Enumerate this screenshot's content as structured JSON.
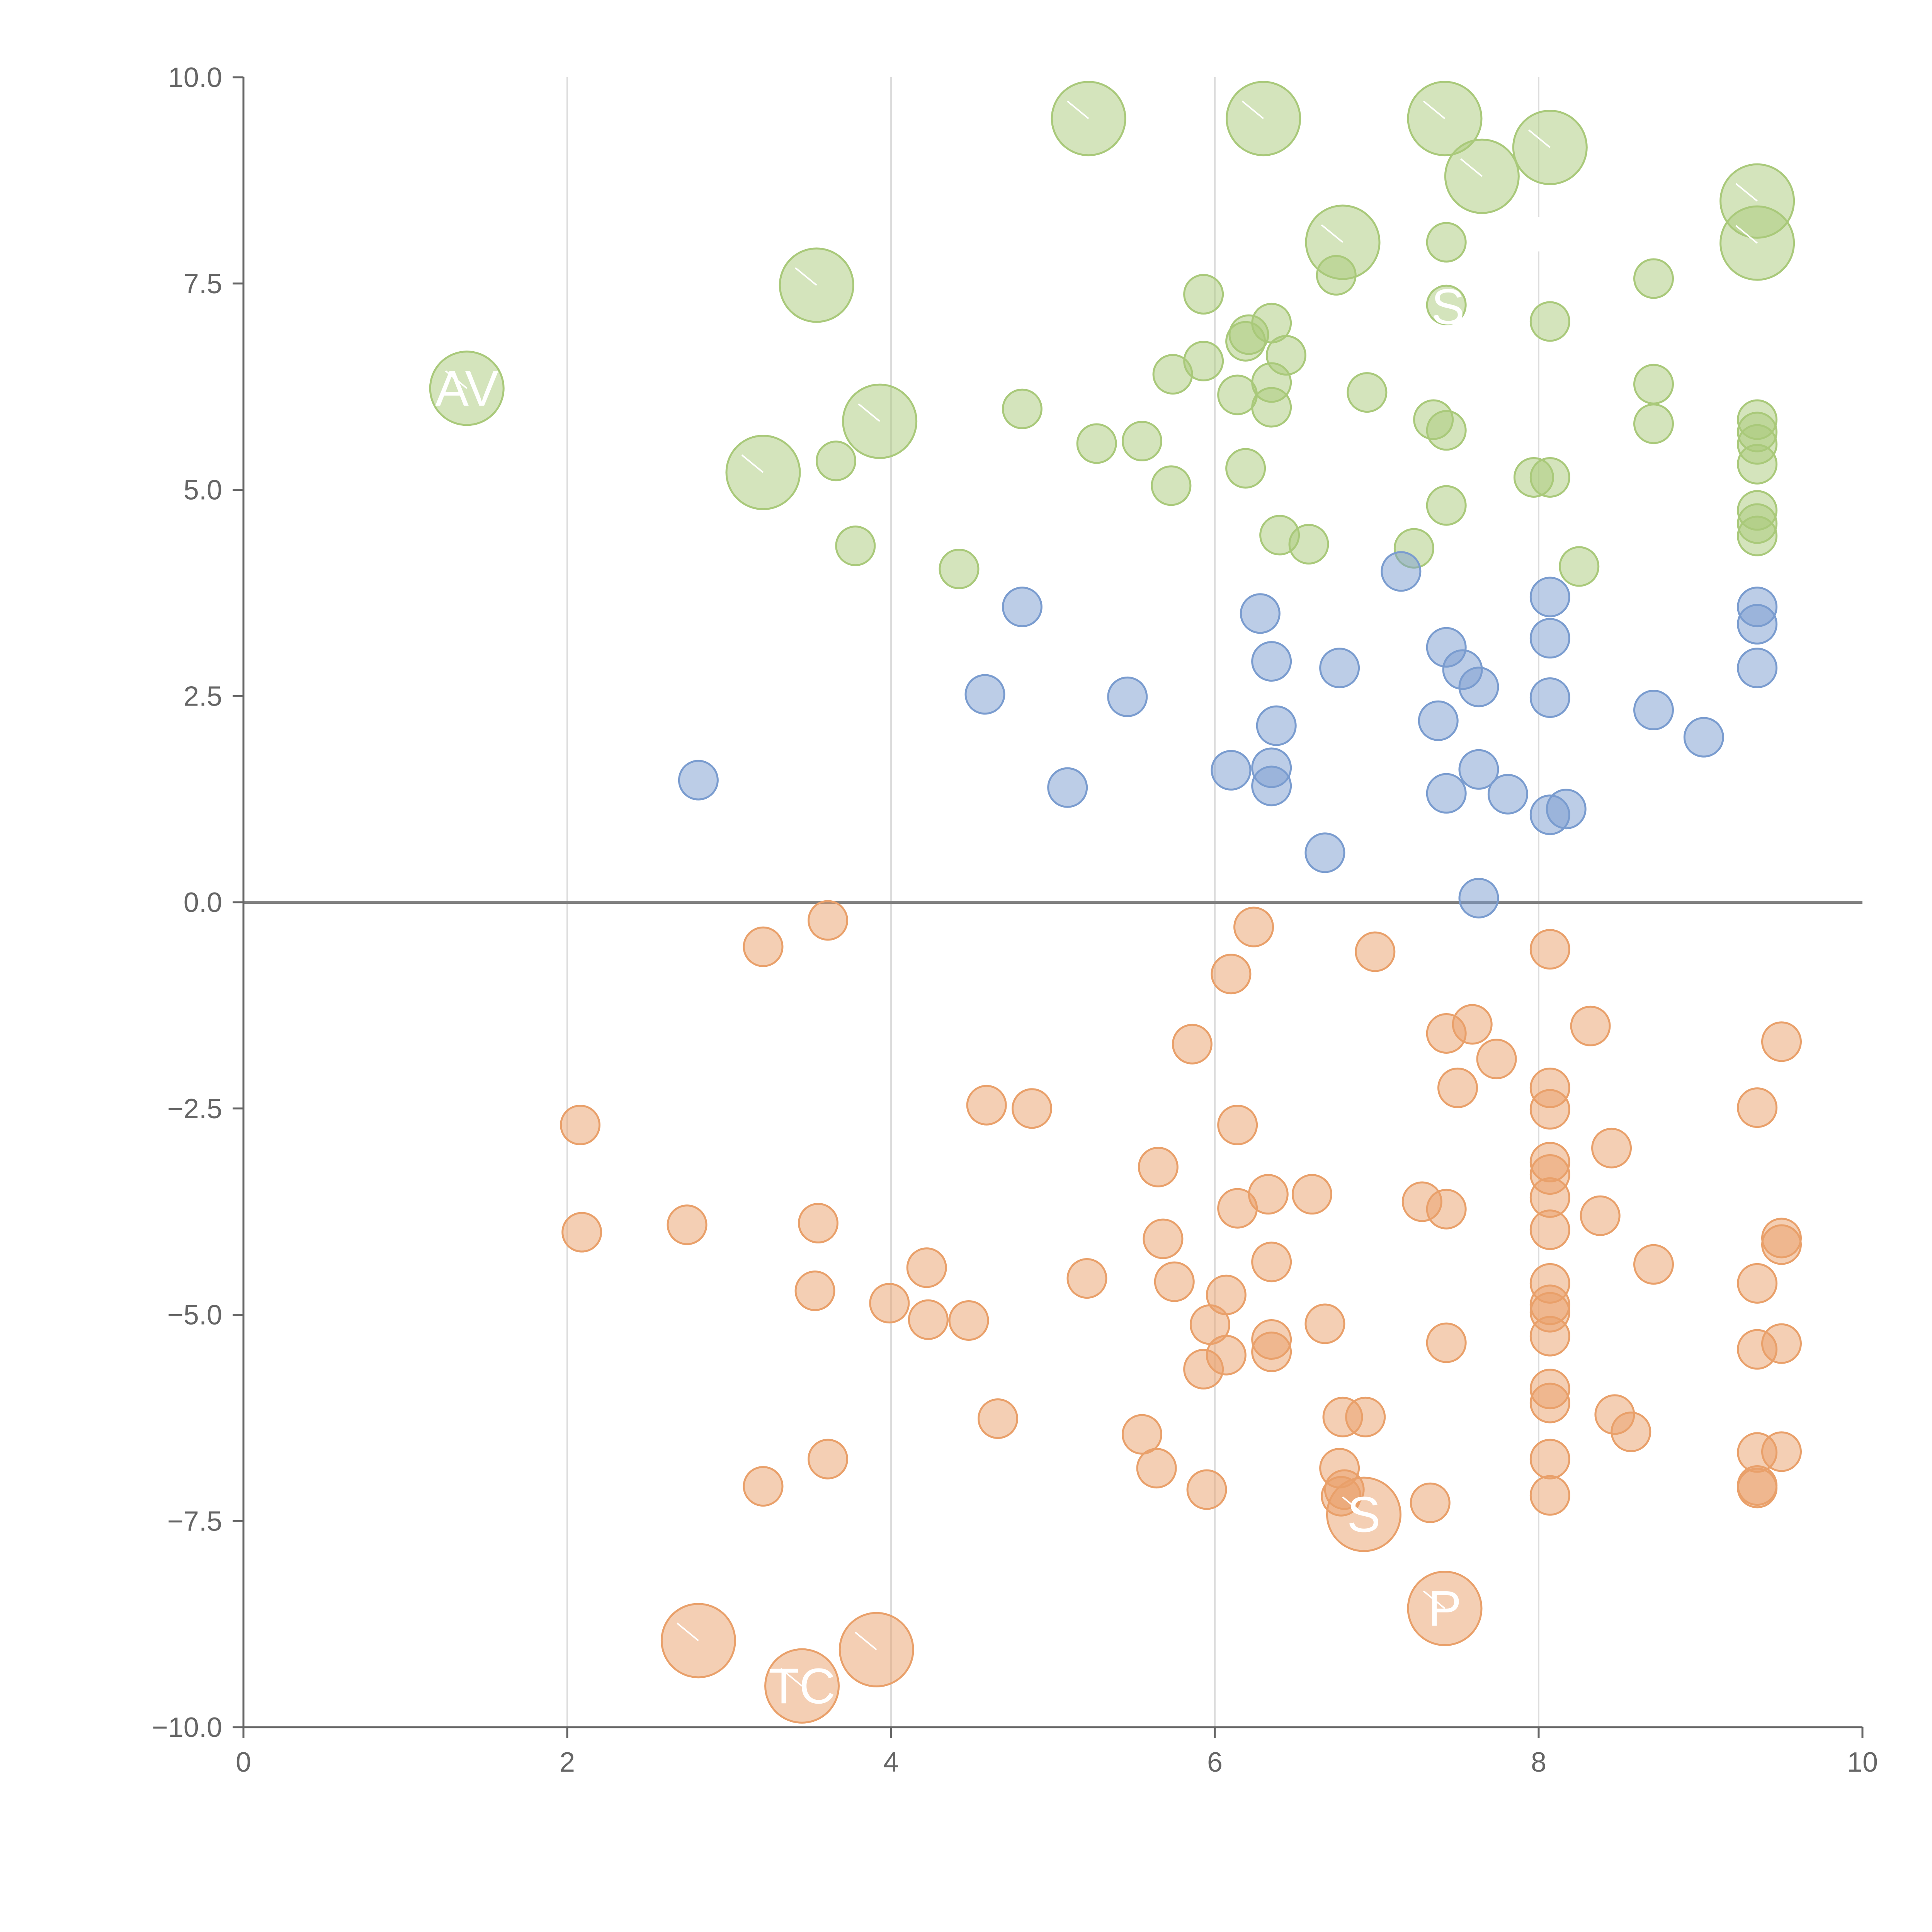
{
  "chart_data": {
    "type": "scatter",
    "title": "",
    "xlabel": "",
    "ylabel": "",
    "xlim": [
      0,
      10
    ],
    "ylim": [
      -10,
      10
    ],
    "xticks": [
      0,
      2,
      4,
      6,
      8,
      10
    ],
    "yticks": [
      -10.0,
      -7.5,
      -5.0,
      -2.5,
      0.0,
      2.5,
      5.0,
      7.5,
      10.0
    ],
    "x_tick_labels": [
      "0",
      "2",
      "4",
      "6",
      "8",
      "10"
    ],
    "y_tick_labels": [
      "−10.0",
      "−7.5",
      "−5.0",
      "−2.5",
      "0.0",
      "2.5",
      "5.0",
      "7.5",
      "10.0"
    ],
    "vertical_grid_at": [
      2,
      4,
      6,
      8
    ],
    "reference_line_y": 0,
    "colors": {
      "high": "#a9c97a",
      "mid": "#7a9ccf",
      "low": "#e9a06a",
      "axis": "#666666",
      "zero_line": "#808080",
      "grid": "#dddddd"
    },
    "series": [
      {
        "name": "high",
        "color": "#a9c97a",
        "points": [
          [
            5.93,
            7.37
          ],
          [
            6.35,
            7.02
          ],
          [
            6.21,
            6.88
          ],
          [
            6.19,
            6.8
          ],
          [
            6.44,
            6.63
          ],
          [
            5.93,
            6.56
          ],
          [
            5.74,
            6.4
          ],
          [
            6.35,
            6.3
          ],
          [
            6.14,
            6.15
          ],
          [
            6.35,
            6.0
          ],
          [
            6.94,
            6.18
          ],
          [
            4.81,
            5.98
          ],
          [
            5.27,
            5.56
          ],
          [
            5.55,
            5.59
          ],
          [
            3.66,
            5.35
          ],
          [
            5.73,
            5.05
          ],
          [
            6.19,
            5.26
          ],
          [
            7.35,
            5.85
          ],
          [
            7.43,
            5.72
          ],
          [
            7.43,
            4.81
          ],
          [
            6.4,
            4.45
          ],
          [
            6.58,
            4.34
          ],
          [
            7.23,
            4.29
          ],
          [
            3.78,
            4.32
          ],
          [
            4.42,
            4.04
          ],
          [
            7.97,
            5.15
          ],
          [
            8.07,
            5.15
          ],
          [
            8.07,
            7.04
          ],
          [
            7.43,
            8.0
          ],
          [
            6.75,
            7.6
          ],
          [
            8.71,
            7.56
          ],
          [
            8.71,
            6.28
          ],
          [
            8.71,
            5.8
          ],
          [
            9.35,
            5.85
          ],
          [
            9.35,
            5.7
          ],
          [
            9.35,
            5.55
          ],
          [
            9.35,
            5.31
          ],
          [
            9.35,
            4.75
          ],
          [
            9.35,
            4.59
          ],
          [
            9.35,
            4.44
          ],
          [
            8.25,
            4.07
          ],
          [
            7.43,
            7.24
          ]
        ]
      },
      {
        "name": "mid",
        "color": "#7a9ccf",
        "points": [
          [
            2.81,
            1.48
          ],
          [
            4.81,
            3.58
          ],
          [
            4.58,
            2.52
          ],
          [
            5.46,
            2.49
          ],
          [
            5.09,
            1.39
          ],
          [
            6.28,
            3.5
          ],
          [
            6.35,
            2.92
          ],
          [
            6.77,
            2.84
          ],
          [
            6.38,
            2.14
          ],
          [
            6.1,
            1.6
          ],
          [
            6.35,
            1.63
          ],
          [
            6.35,
            1.41
          ],
          [
            6.68,
            0.6
          ],
          [
            7.15,
            4.01
          ],
          [
            7.43,
            3.09
          ],
          [
            7.53,
            2.82
          ],
          [
            7.63,
            2.61
          ],
          [
            7.38,
            2.2
          ],
          [
            7.43,
            1.32
          ],
          [
            7.63,
            1.61
          ],
          [
            7.81,
            1.31
          ],
          [
            7.63,
            0.05
          ],
          [
            8.07,
            3.7
          ],
          [
            8.07,
            3.2
          ],
          [
            8.07,
            2.48
          ],
          [
            8.07,
            1.06
          ],
          [
            8.17,
            1.13
          ],
          [
            8.71,
            2.33
          ],
          [
            9.02,
            2.0
          ],
          [
            9.35,
            3.58
          ],
          [
            9.35,
            3.37
          ],
          [
            9.35,
            2.84
          ]
        ]
      },
      {
        "name": "low",
        "color": "#e9a06a",
        "points": [
          [
            3.61,
            -0.22
          ],
          [
            3.21,
            -0.54
          ],
          [
            6.24,
            -0.3
          ],
          [
            6.99,
            -0.6
          ],
          [
            6.1,
            -0.87
          ],
          [
            5.86,
            -1.72
          ],
          [
            8.07,
            -0.57
          ],
          [
            7.43,
            -1.59
          ],
          [
            7.59,
            -1.48
          ],
          [
            7.74,
            -1.9
          ],
          [
            7.5,
            -2.25
          ],
          [
            8.32,
            -1.5
          ],
          [
            9.35,
            -2.49
          ],
          [
            9.5,
            -1.69
          ],
          [
            2.08,
            -2.7
          ],
          [
            2.09,
            -4.0
          ],
          [
            2.74,
            -3.91
          ],
          [
            3.55,
            -3.89
          ],
          [
            3.53,
            -4.71
          ],
          [
            4.59,
            -2.46
          ],
          [
            4.87,
            -2.5
          ],
          [
            6.14,
            -2.7
          ],
          [
            5.65,
            -3.21
          ],
          [
            6.14,
            -3.71
          ],
          [
            6.33,
            -3.54
          ],
          [
            6.6,
            -3.54
          ],
          [
            5.68,
            -4.08
          ],
          [
            6.35,
            -4.36
          ],
          [
            7.28,
            -3.63
          ],
          [
            7.43,
            -3.72
          ],
          [
            8.07,
            -2.25
          ],
          [
            8.07,
            -2.51
          ],
          [
            8.07,
            -3.15
          ],
          [
            8.07,
            -3.3
          ],
          [
            8.07,
            -3.58
          ],
          [
            8.07,
            -3.97
          ],
          [
            8.45,
            -2.98
          ],
          [
            8.38,
            -3.8
          ],
          [
            4.22,
            -4.43
          ],
          [
            4.23,
            -5.06
          ],
          [
            4.48,
            -5.07
          ],
          [
            3.99,
            -4.86
          ],
          [
            5.21,
            -4.56
          ],
          [
            5.75,
            -4.6
          ],
          [
            6.07,
            -4.76
          ],
          [
            5.97,
            -5.12
          ],
          [
            6.07,
            -5.49
          ],
          [
            5.93,
            -5.66
          ],
          [
            6.35,
            -5.3
          ],
          [
            6.35,
            -5.45
          ],
          [
            6.68,
            -5.11
          ],
          [
            7.43,
            -5.34
          ],
          [
            8.07,
            -4.62
          ],
          [
            8.07,
            -4.88
          ],
          [
            8.07,
            -4.97
          ],
          [
            8.07,
            -5.26
          ],
          [
            8.07,
            -5.9
          ],
          [
            8.07,
            -6.07
          ],
          [
            8.71,
            -4.39
          ],
          [
            9.35,
            -4.62
          ],
          [
            9.5,
            -4.07
          ],
          [
            9.5,
            -4.15
          ],
          [
            9.35,
            -5.42
          ],
          [
            9.5,
            -5.35
          ],
          [
            4.66,
            -6.26
          ],
          [
            3.61,
            -6.75
          ],
          [
            3.21,
            -7.08
          ],
          [
            5.55,
            -6.45
          ],
          [
            5.64,
            -6.86
          ],
          [
            5.95,
            -7.12
          ],
          [
            6.79,
            -6.24
          ],
          [
            6.93,
            -6.24
          ],
          [
            6.77,
            -6.86
          ],
          [
            6.8,
            -7.12
          ],
          [
            6.78,
            -7.2
          ],
          [
            7.33,
            -7.28
          ],
          [
            8.07,
            -6.75
          ],
          [
            8.07,
            -7.19
          ],
          [
            8.47,
            -6.21
          ],
          [
            8.57,
            -6.42
          ],
          [
            9.35,
            -6.67
          ],
          [
            9.5,
            -6.66
          ],
          [
            9.35,
            -7.07
          ],
          [
            9.35,
            -7.1
          ]
        ]
      }
    ],
    "highlighted": [
      {
        "x": 1.38,
        "y": 6.23,
        "group": "high",
        "label": "AV"
      },
      {
        "x": 3.54,
        "y": 7.48,
        "group": "high",
        "label": ""
      },
      {
        "x": 3.21,
        "y": 5.21,
        "group": "high",
        "label": ""
      },
      {
        "x": 3.93,
        "y": 5.83,
        "group": "high",
        "label": ""
      },
      {
        "x": 5.22,
        "y": 9.5,
        "group": "high",
        "label": ""
      },
      {
        "x": 6.3,
        "y": 9.5,
        "group": "high",
        "label": ""
      },
      {
        "x": 7.42,
        "y": 9.5,
        "group": "high",
        "label": ""
      },
      {
        "x": 7.65,
        "y": 8.8,
        "group": "high",
        "label": ""
      },
      {
        "x": 8.07,
        "y": 9.15,
        "group": "high",
        "label": ""
      },
      {
        "x": 6.79,
        "y": 8.0,
        "group": "high",
        "label": ""
      },
      {
        "x": 9.35,
        "y": 8.5,
        "group": "high",
        "label": ""
      },
      {
        "x": 9.35,
        "y": 7.99,
        "group": "high",
        "label": ""
      },
      {
        "x": 6.92,
        "y": -7.42,
        "group": "low",
        "label": "S"
      },
      {
        "x": 7.42,
        "y": -8.56,
        "group": "low",
        "label": "P"
      },
      {
        "x": 2.81,
        "y": -8.95,
        "group": "low",
        "label": ""
      },
      {
        "x": 3.45,
        "y": -9.5,
        "group": "low",
        "label": "TC"
      },
      {
        "x": 3.91,
        "y": -9.06,
        "group": "low",
        "label": ""
      }
    ],
    "bubble_labels": [
      {
        "text": "S",
        "x": 7.44,
        "y": 7.22,
        "color": "#ffffff"
      },
      {
        "text": "D",
        "x": 8.08,
        "y": 8.1,
        "color": "#ffffff"
      }
    ]
  }
}
